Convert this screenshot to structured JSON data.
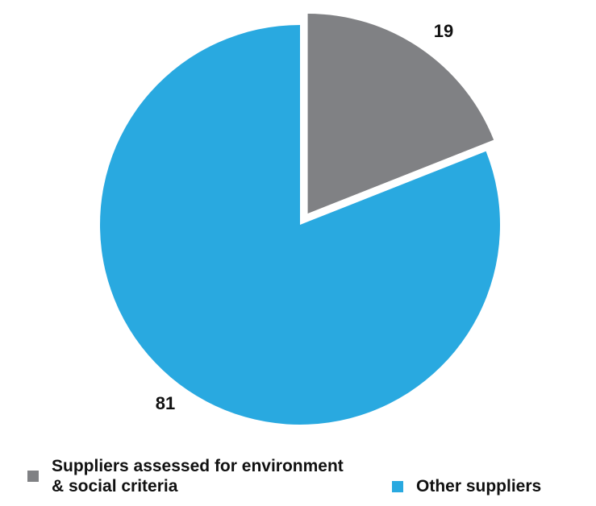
{
  "chart_data": {
    "type": "pie",
    "categories": [
      "Suppliers assessed for environment & social criteria",
      "Other suppliers"
    ],
    "values": [
      19,
      81
    ],
    "colors": [
      "#808184",
      "#29a9e0"
    ],
    "exploded": [
      true,
      false
    ],
    "data_labels": [
      "19",
      "81"
    ],
    "legend": [
      "Suppliers assessed for environment & social criteria",
      "Other suppliers"
    ],
    "legend_placement": "bottom",
    "start_angle": "12 o'clock, clockwise"
  }
}
